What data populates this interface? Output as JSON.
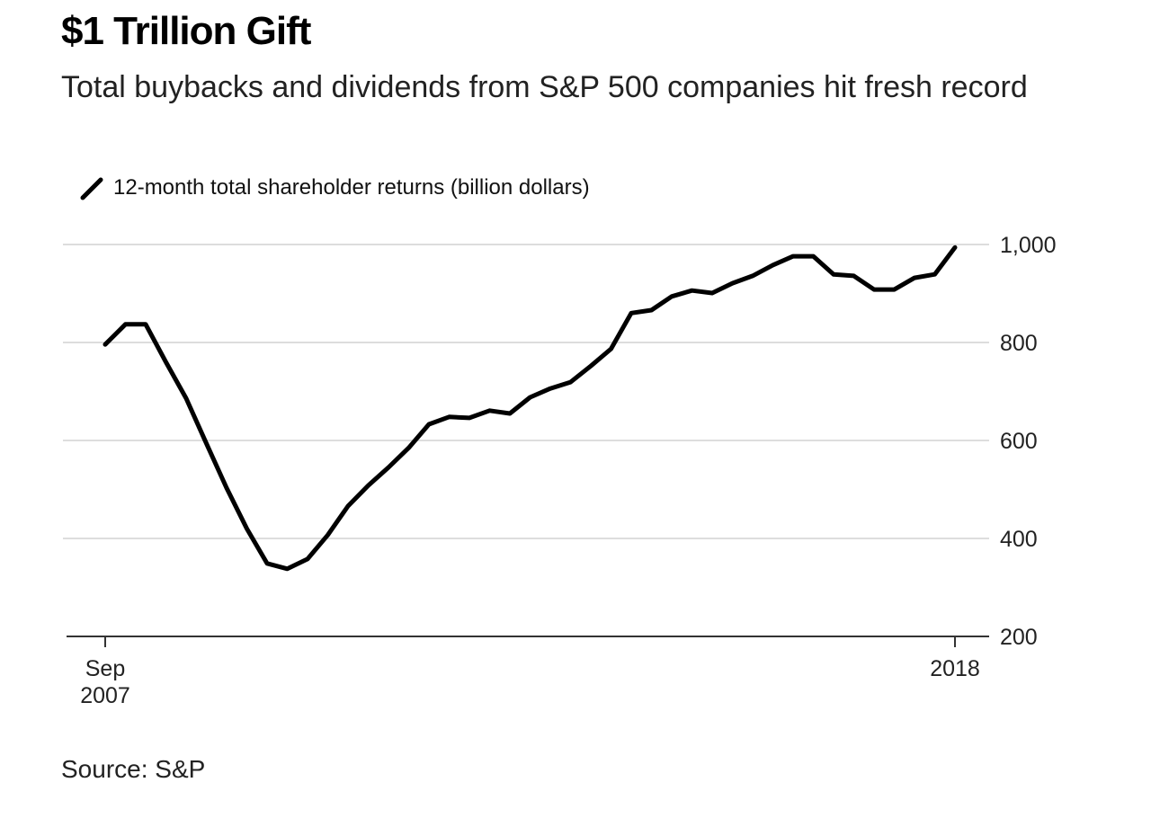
{
  "title": "$1 Trillion Gift",
  "subtitle": "Total buybacks and dividends from S&P 500 companies hit fresh record",
  "source": "Source: S&P",
  "chart_data": {
    "type": "line",
    "title": "$1 Trillion Gift",
    "subtitle": "Total buybacks and dividends from S&P 500 companies hit fresh record",
    "xlabel": "",
    "ylabel": "",
    "ylim": [
      200,
      1000
    ],
    "yticks": [
      "1,000",
      "800",
      "600",
      "400",
      "200"
    ],
    "ytick_values": [
      1000,
      800,
      600,
      400,
      200
    ],
    "y_axis_side": "right",
    "xticks": [
      {
        "line1": "Sep",
        "line2": "2007"
      },
      {
        "line1": "",
        "line2": "2018"
      }
    ],
    "x_range": [
      "Sep 2007",
      "Mar 2018"
    ],
    "frequency": "quarterly",
    "grid": true,
    "legend_position": "top-left",
    "line_color": "#000000",
    "grid_color": "#dddddd",
    "series": [
      {
        "name": "12-month total shareholder returns (billion dollars)",
        "values": [
          796,
          837,
          837,
          760,
          686,
          594,
          503,
          420,
          349,
          338,
          358,
          407,
          466,
          508,
          545,
          585,
          633,
          648,
          646,
          661,
          655,
          688,
          706,
          719,
          752,
          787,
          860,
          866,
          894,
          906,
          901,
          921,
          936,
          958,
          976,
          976,
          939,
          936,
          908,
          908,
          932,
          939,
          994
        ]
      }
    ]
  }
}
